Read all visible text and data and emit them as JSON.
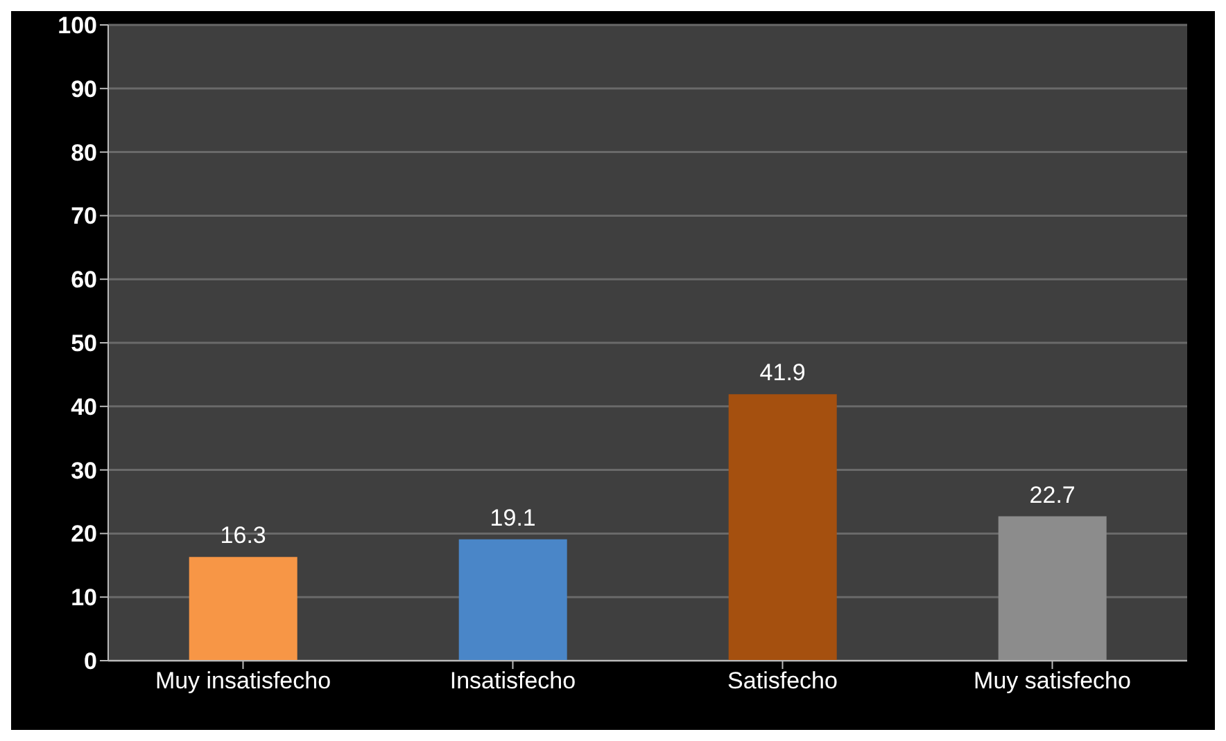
{
  "chart_data": {
    "type": "bar",
    "categories": [
      "Muy insatisfecho",
      "Insatisfecho",
      "Satisfecho",
      "Muy satisfecho"
    ],
    "values": [
      16.3,
      19.1,
      41.9,
      22.7
    ],
    "colors": [
      "#f79646",
      "#4a86c8",
      "#a5500f",
      "#8c8c8c"
    ],
    "ylim": [
      0,
      100
    ],
    "yticks": [
      0,
      10,
      20,
      30,
      40,
      50,
      60,
      70,
      80,
      90,
      100
    ],
    "grid": "y",
    "data_labels": true
  }
}
